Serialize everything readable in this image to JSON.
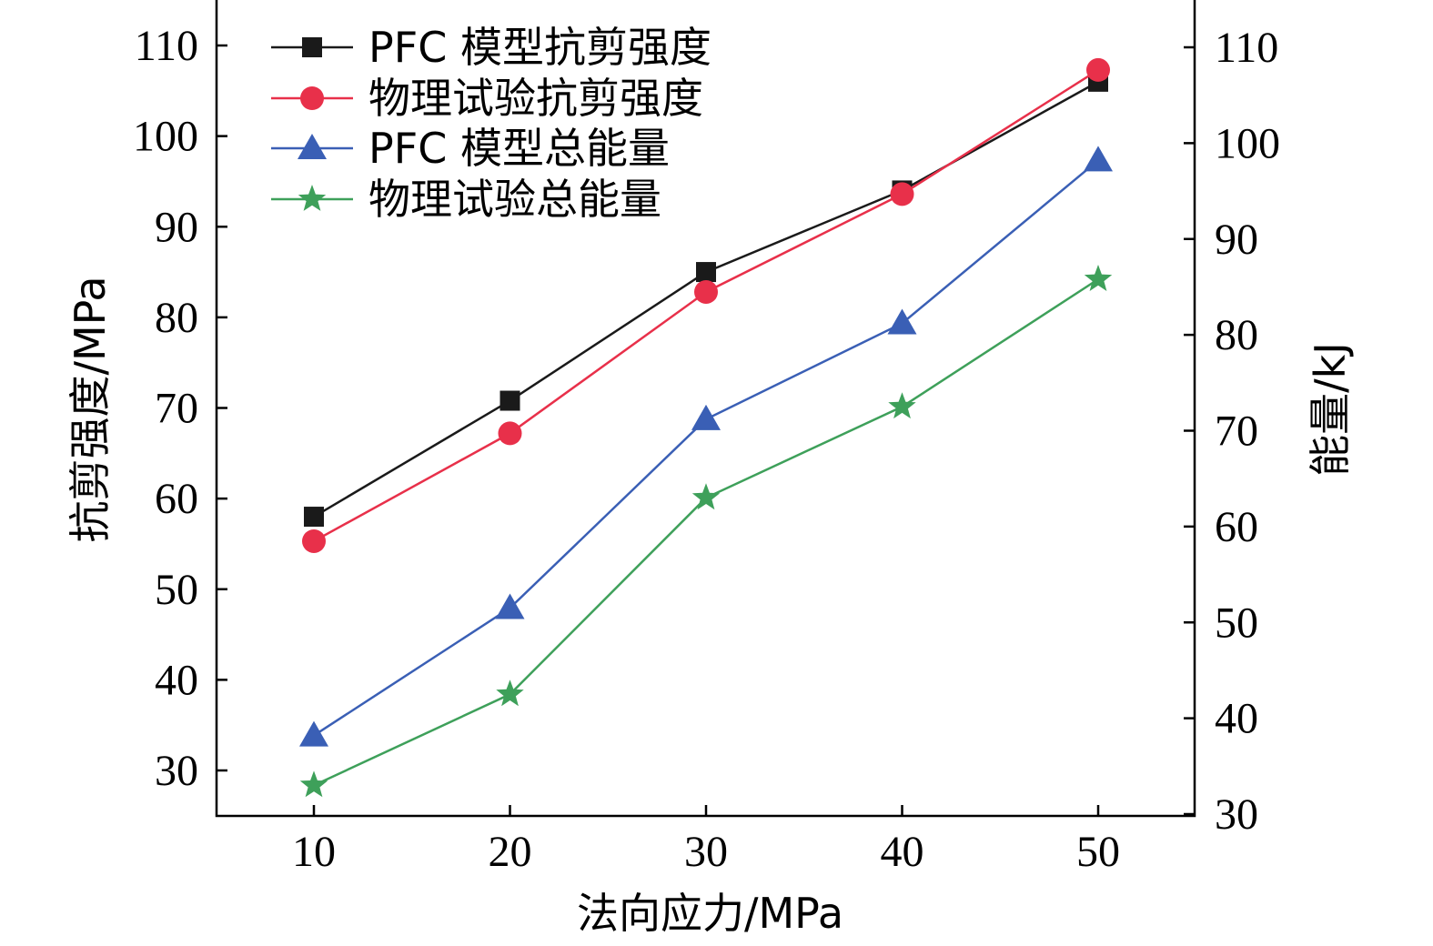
{
  "chart_data": {
    "type": "line",
    "title": "",
    "xlabel": "法向应力/MPa",
    "ylabel_left": "抗剪强度/MPa",
    "ylabel_right": "能量/kJ",
    "x": [
      10,
      20,
      30,
      40,
      50
    ],
    "x_ticks": [
      "10",
      "20",
      "30",
      "40",
      "50"
    ],
    "xlim": [
      5,
      55
    ],
    "ylim_left": [
      25,
      115
    ],
    "ylim_right": [
      30,
      115
    ],
    "y_ticks_left": [
      "30",
      "40",
      "50",
      "60",
      "70",
      "80",
      "90",
      "100",
      "110"
    ],
    "y_ticks_right": [
      "30",
      "40",
      "50",
      "60",
      "70",
      "80",
      "90",
      "100",
      "110"
    ],
    "grid": false,
    "legend_position": "top-left",
    "series": [
      {
        "name": "PFC 模型抗剪强度",
        "axis": "left",
        "marker": "square",
        "color": "#1a1a1a",
        "values": [
          58,
          70.8,
          85,
          94,
          106
        ]
      },
      {
        "name": "物理试验抗剪强度",
        "axis": "left",
        "marker": "circle",
        "color": "#e8304a",
        "values": [
          55.3,
          67.2,
          82.8,
          93.6,
          107.3
        ]
      },
      {
        "name": "PFC 模型总能量",
        "axis": "right",
        "marker": "triangle",
        "color": "#3a5fb5",
        "values": [
          38.2,
          51.5,
          71.2,
          81.2,
          98.2
        ]
      },
      {
        "name": "物理试验总能量",
        "axis": "right",
        "marker": "star",
        "color": "#3ea05a",
        "values": [
          33,
          42.5,
          63,
          72.5,
          85.8
        ]
      }
    ]
  }
}
